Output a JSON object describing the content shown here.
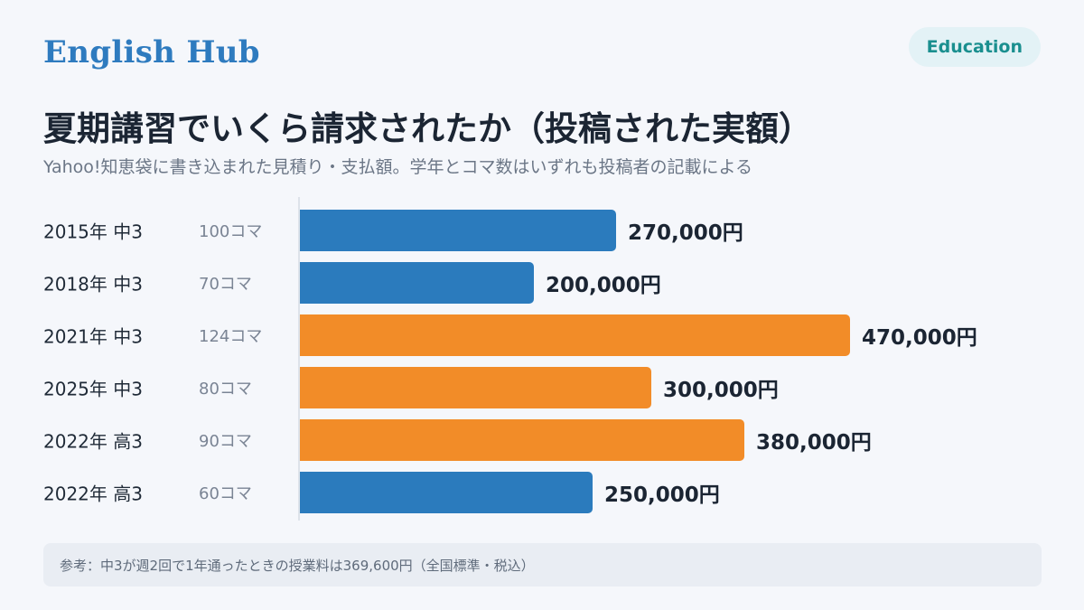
{
  "header": {
    "brand": "English Hub",
    "badge": "Education",
    "title": "夏期講習でいくら請求されたか（投稿された実額）",
    "subtitle": "Yahoo!知恵袋に書き込まれた見積り・支払額。学年とコマ数はいずれも投稿者の記載による"
  },
  "chart_data": {
    "type": "bar",
    "orientation": "horizontal",
    "categories": [
      "2015年 中3",
      "2018年 中3",
      "2021年 中3",
      "2025年 中3",
      "2022年 高3",
      "2022年 高3"
    ],
    "lesson_counts": [
      "100コマ",
      "70コマ",
      "124コマ",
      "80コマ",
      "90コマ",
      "60コマ"
    ],
    "values": [
      270000,
      200000,
      470000,
      300000,
      380000,
      250000
    ],
    "value_labels": [
      "270,000円",
      "200,000円",
      "470,000円",
      "300,000円",
      "380,000円",
      "250,000円"
    ],
    "bar_colors": [
      "#2b7bbd",
      "#2b7bbd",
      "#f28c28",
      "#f28c28",
      "#f28c28",
      "#2b7bbd"
    ],
    "xlim": [
      0,
      470000
    ],
    "grid": false,
    "title": "",
    "xlabel": "",
    "ylabel": ""
  },
  "footer": {
    "note": "参考：中3が週2回で1年通ったときの授業料は369,600円（全国標準・税込）"
  }
}
